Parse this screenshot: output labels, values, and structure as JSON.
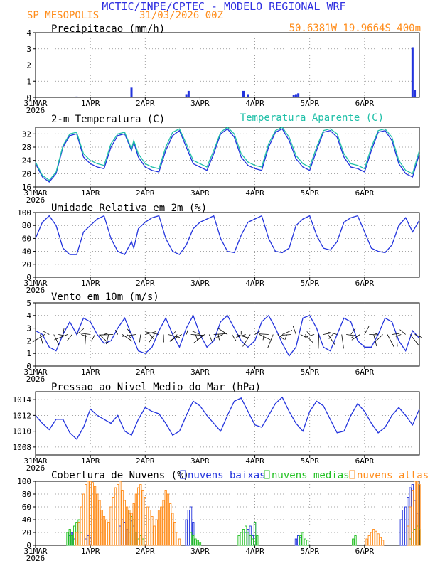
{
  "header": {
    "title": "MCTIC/INPE/CPTEC - MODELO REGIONAL WRF",
    "station": "SP MESOPOLIS",
    "run": "31/03/2026 00Z",
    "location": "50.6381W 19.9664S 400m"
  },
  "colors": {
    "title": "#3030e0",
    "orange": "#ff8c1a",
    "line": "#2233dd",
    "teal": "#20c0a8",
    "green": "#20c020"
  },
  "x_axis": {
    "ticks": [
      {
        "hour": 0,
        "label": "31MAR",
        "sub": "2026"
      },
      {
        "hour": 24,
        "label": "1APR"
      },
      {
        "hour": 48,
        "label": "2APR"
      },
      {
        "hour": 72,
        "label": "3APR"
      },
      {
        "hour": 96,
        "label": "4APR"
      },
      {
        "hour": 120,
        "label": "5APR"
      },
      {
        "hour": 144,
        "label": "6APR"
      }
    ],
    "range": [
      0,
      168
    ]
  },
  "chart_data": [
    {
      "type": "bar",
      "title": "Precipitacao (mm/h)",
      "ylim": [
        0,
        4
      ],
      "yticks": [
        "0",
        "1",
        "2",
        "3",
        "4"
      ],
      "x": [
        18,
        42,
        66,
        67,
        91,
        93,
        113,
        114,
        115,
        165,
        166
      ],
      "values": [
        0.05,
        0.6,
        0.2,
        0.4,
        0.4,
        0.2,
        0.15,
        0.2,
        0.25,
        3.1,
        0.45
      ]
    },
    {
      "type": "line",
      "title": "2-m Temperatura (C)",
      "legend": "Temperatura Aparente (C)",
      "ylim": [
        16,
        34
      ],
      "yticks": [
        "16",
        "20",
        "24",
        "28",
        "32"
      ],
      "series": [
        {
          "name": "2-m Temperatura (C)",
          "x": [
            0,
            3,
            6,
            9,
            12,
            15,
            18,
            21,
            24,
            27,
            30,
            33,
            36,
            39,
            42,
            43,
            45,
            48,
            51,
            54,
            57,
            60,
            63,
            66,
            69,
            72,
            75,
            78,
            81,
            84,
            87,
            90,
            93,
            96,
            99,
            102,
            105,
            108,
            111,
            114,
            117,
            120,
            123,
            126,
            129,
            132,
            135,
            138,
            141,
            144,
            147,
            150,
            153,
            156,
            159,
            162,
            165,
            168
          ],
          "values": [
            23,
            19,
            17.5,
            20,
            28,
            31.5,
            32,
            25,
            23,
            22,
            21.5,
            28,
            31.5,
            32,
            27,
            29.5,
            25,
            22,
            21,
            20.5,
            27,
            31.5,
            33,
            28,
            23,
            22,
            21,
            26,
            32,
            33.5,
            31,
            25,
            22.5,
            21.5,
            21,
            28,
            32.5,
            33.5,
            30,
            24.5,
            22,
            21,
            27,
            32.5,
            33,
            31,
            25,
            22,
            21.5,
            20.5,
            27,
            32.5,
            33,
            30,
            23,
            20,
            19,
            26
          ]
        },
        {
          "name": "Temperatura Aparente (C)",
          "x": [
            0,
            3,
            6,
            9,
            12,
            15,
            18,
            21,
            24,
            27,
            30,
            33,
            36,
            39,
            42,
            43,
            45,
            48,
            51,
            54,
            57,
            60,
            63,
            66,
            69,
            72,
            75,
            78,
            81,
            84,
            87,
            90,
            93,
            96,
            99,
            102,
            105,
            108,
            111,
            114,
            117,
            120,
            123,
            126,
            129,
            132,
            135,
            138,
            141,
            144,
            147,
            150,
            153,
            156,
            159,
            162,
            165,
            168
          ],
          "values": [
            23.5,
            19.5,
            18,
            20.5,
            28.5,
            32,
            32.5,
            26,
            24,
            23,
            22.5,
            29,
            32,
            32.5,
            27.5,
            30,
            26,
            23,
            22,
            21.5,
            28,
            32.5,
            33.5,
            29,
            24,
            23,
            22,
            27,
            32.5,
            34,
            32,
            26,
            23.5,
            22.5,
            22,
            29,
            33,
            34,
            31,
            25.5,
            23,
            22,
            28,
            33,
            33.5,
            32,
            26,
            23,
            22.5,
            21.5,
            28,
            33,
            33.5,
            31,
            24,
            21,
            20,
            27
          ]
        }
      ]
    },
    {
      "type": "line",
      "title": "Umidade Relativa em 2m (%)",
      "ylim": [
        0,
        100
      ],
      "yticks": [
        "0",
        "20",
        "40",
        "60",
        "80",
        "100"
      ],
      "series": [
        {
          "name": "Umidade Relativa em 2m (%)",
          "x": [
            0,
            3,
            6,
            9,
            12,
            15,
            18,
            21,
            24,
            27,
            30,
            33,
            36,
            39,
            42,
            43,
            45,
            48,
            51,
            54,
            57,
            60,
            63,
            66,
            69,
            72,
            75,
            78,
            81,
            84,
            87,
            90,
            93,
            96,
            99,
            102,
            105,
            108,
            111,
            114,
            117,
            120,
            123,
            126,
            129,
            132,
            135,
            138,
            141,
            144,
            147,
            150,
            153,
            156,
            159,
            162,
            165,
            168
          ],
          "values": [
            60,
            85,
            95,
            80,
            45,
            35,
            35,
            70,
            80,
            90,
            95,
            60,
            40,
            35,
            55,
            45,
            75,
            85,
            92,
            95,
            60,
            40,
            35,
            50,
            75,
            85,
            90,
            95,
            60,
            40,
            38,
            65,
            85,
            90,
            95,
            60,
            40,
            38,
            45,
            80,
            90,
            95,
            65,
            45,
            42,
            55,
            85,
            92,
            95,
            70,
            45,
            40,
            38,
            50,
            80,
            92,
            70,
            88
          ]
        }
      ]
    },
    {
      "type": "line",
      "title": "Vento em 10m (m/s)",
      "ylim": [
        0,
        5
      ],
      "yticks": [
        "0",
        "1",
        "2",
        "3",
        "4",
        "5"
      ],
      "series": [
        {
          "name": "Vento em 10m (m/s)",
          "x": [
            0,
            3,
            6,
            9,
            12,
            15,
            18,
            21,
            24,
            27,
            30,
            33,
            36,
            39,
            42,
            45,
            48,
            51,
            54,
            57,
            60,
            63,
            66,
            69,
            72,
            75,
            78,
            81,
            84,
            87,
            90,
            93,
            96,
            99,
            102,
            105,
            108,
            111,
            114,
            117,
            120,
            123,
            126,
            129,
            132,
            135,
            138,
            141,
            144,
            147,
            150,
            153,
            156,
            159,
            162,
            165,
            168
          ],
          "values": [
            2.8,
            2.5,
            1.5,
            1.2,
            2.5,
            3.5,
            2.5,
            3.8,
            3.5,
            2.5,
            1.8,
            2.0,
            3.0,
            3.8,
            2.5,
            1.2,
            1.0,
            1.5,
            2.8,
            3.8,
            2.5,
            1.5,
            3.0,
            4.0,
            2.5,
            1.5,
            2.0,
            3.5,
            4.0,
            3.0,
            2.0,
            1.5,
            2.0,
            3.5,
            4.0,
            3.0,
            1.8,
            0.8,
            1.5,
            3.8,
            4.0,
            3.0,
            1.5,
            1.2,
            2.5,
            3.8,
            3.5,
            2.0,
            1.5,
            1.5,
            2.5,
            3.8,
            3.5,
            2.0,
            1.2,
            2.8,
            2.2
          ]
        }
      ]
    },
    {
      "type": "line",
      "title": "Pressao ao Nivel Medio do Mar (hPa)",
      "ylim": [
        1007,
        1015
      ],
      "yticks": [
        "1008",
        "1010",
        "1012",
        "1014"
      ],
      "series": [
        {
          "name": "Pressao ao Nivel Medio do Mar (hPa)",
          "x": [
            0,
            3,
            6,
            9,
            12,
            15,
            18,
            21,
            24,
            27,
            30,
            33,
            36,
            39,
            42,
            45,
            48,
            51,
            54,
            57,
            60,
            63,
            66,
            69,
            72,
            75,
            78,
            81,
            84,
            87,
            90,
            93,
            96,
            99,
            102,
            105,
            108,
            111,
            114,
            117,
            120,
            123,
            126,
            129,
            132,
            135,
            138,
            141,
            144,
            147,
            150,
            153,
            156,
            159,
            162,
            165,
            168
          ],
          "values": [
            1012,
            1011,
            1010.2,
            1011.5,
            1011.5,
            1009.8,
            1009,
            1010.5,
            1012.8,
            1012,
            1011.5,
            1011,
            1012,
            1010,
            1009.5,
            1011.5,
            1013,
            1012.5,
            1012.2,
            1011,
            1009.5,
            1010,
            1012,
            1013.8,
            1013.2,
            1012,
            1011,
            1010,
            1012,
            1013.8,
            1014.2,
            1012.5,
            1010.8,
            1010.5,
            1012,
            1013.5,
            1014.3,
            1012.5,
            1011,
            1010,
            1012.5,
            1013.8,
            1013.2,
            1011.5,
            1009.8,
            1010,
            1012,
            1013.5,
            1012.5,
            1011,
            1009.8,
            1010.5,
            1012,
            1013,
            1012,
            1010.8,
            1012.8
          ]
        }
      ]
    },
    {
      "type": "bar",
      "title": "Cobertura de Nuvens (%)",
      "legend": [
        "nuvens baixas",
        "nuvens medias",
        "nuvens altas"
      ],
      "ylim": [
        0,
        100
      ],
      "yticks": [
        "0",
        "20",
        "40",
        "60",
        "80",
        "100"
      ],
      "series": [
        {
          "name": "nuvens baixas",
          "x": [
            15,
            16,
            17,
            22,
            23,
            24,
            37,
            38,
            39,
            40,
            41,
            42,
            43,
            44,
            66,
            67,
            68,
            69,
            92,
            93,
            94,
            95,
            96,
            114,
            115,
            116,
            160,
            161,
            162,
            163,
            164,
            165,
            166,
            167
          ],
          "values": [
            15,
            20,
            10,
            10,
            15,
            12,
            30,
            40,
            35,
            25,
            50,
            38,
            30,
            20,
            40,
            55,
            60,
            35,
            20,
            25,
            30,
            15,
            35,
            10,
            15,
            12,
            40,
            55,
            60,
            75,
            90,
            95,
            70,
            50
          ]
        },
        {
          "name": "nuvens medias",
          "x": [
            14,
            15,
            16,
            17,
            18,
            19,
            20,
            41,
            42,
            43,
            44,
            45,
            46,
            47,
            68,
            69,
            70,
            71,
            72,
            89,
            90,
            91,
            92,
            93,
            94,
            95,
            96,
            97,
            116,
            117,
            118,
            119,
            139,
            140,
            164,
            165,
            166,
            167,
            168
          ],
          "values": [
            20,
            25,
            15,
            30,
            35,
            40,
            20,
            55,
            45,
            40,
            20,
            10,
            15,
            10,
            20,
            15,
            10,
            8,
            5,
            15,
            20,
            25,
            30,
            20,
            15,
            10,
            35,
            15,
            15,
            20,
            10,
            8,
            10,
            15,
            10,
            20,
            25,
            30,
            25
          ]
        },
        {
          "name": "nuvens altas",
          "x": [
            18,
            19,
            20,
            21,
            22,
            23,
            24,
            25,
            26,
            27,
            28,
            29,
            30,
            31,
            32,
            33,
            34,
            35,
            36,
            37,
            38,
            39,
            40,
            41,
            42,
            43,
            44,
            45,
            46,
            47,
            48,
            49,
            50,
            51,
            52,
            53,
            54,
            55,
            56,
            57,
            58,
            59,
            60,
            61,
            62,
            63,
            145,
            146,
            147,
            148,
            149,
            150,
            151,
            152,
            163,
            164,
            165,
            166,
            167,
            168
          ],
          "values": [
            20,
            35,
            60,
            80,
            95,
            100,
            100,
            98,
            92,
            80,
            70,
            55,
            45,
            40,
            35,
            60,
            75,
            90,
            95,
            100,
            85,
            70,
            60,
            55,
            50,
            65,
            80,
            90,
            95,
            85,
            75,
            60,
            55,
            45,
            30,
            40,
            55,
            60,
            70,
            85,
            80,
            65,
            50,
            35,
            20,
            10,
            10,
            15,
            20,
            25,
            22,
            18,
            12,
            8,
            30,
            60,
            85,
            100,
            100,
            95
          ]
        }
      ]
    }
  ]
}
